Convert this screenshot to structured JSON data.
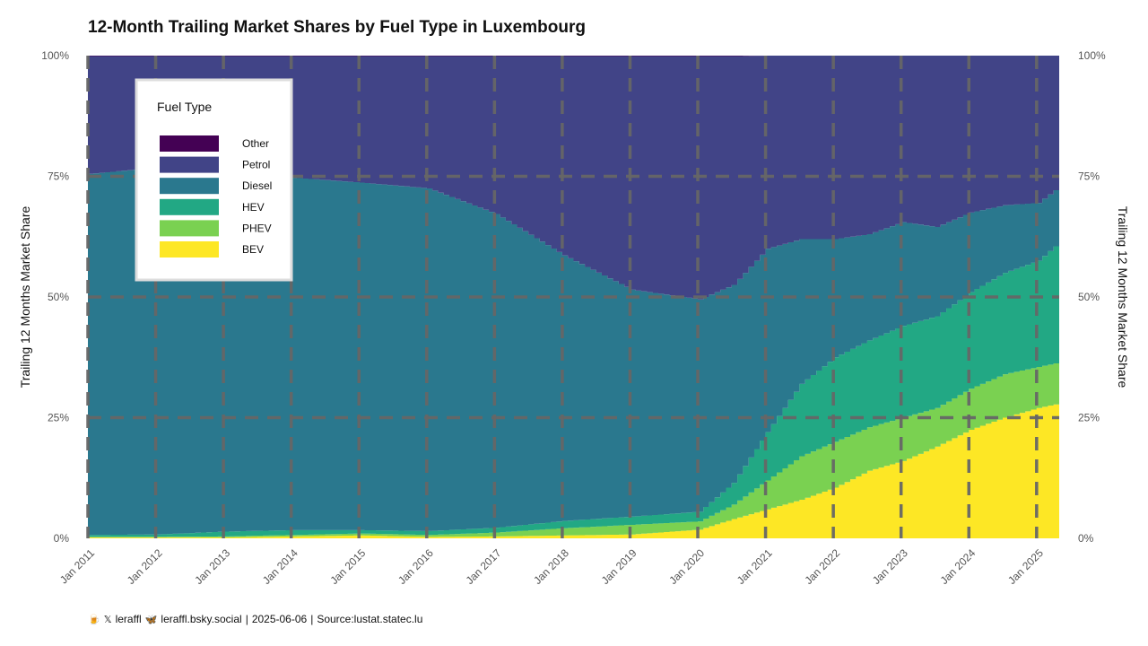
{
  "chart_data": {
    "type": "area",
    "stacked": true,
    "normalized": true,
    "title": "12-Month Trailing Market Shares by Fuel Type in Luxembourg",
    "ylabel": "Trailing 12 Months Market Share",
    "ylabel_right": "Trailing 12 Months Market Share",
    "ylim": [
      0,
      100
    ],
    "y_ticks": [
      "0%",
      "25%",
      "50%",
      "75%",
      "100%"
    ],
    "x_ticks": [
      "Jan 2011",
      "Jan 2012",
      "Jan 2013",
      "Jan 2014",
      "Jan 2015",
      "Jan 2016",
      "Jan 2017",
      "Jan 2018",
      "Jan 2019",
      "Jan 2020",
      "Jan 2021",
      "Jan 2022",
      "Jan 2023",
      "Jan 2024",
      "Jan 2025"
    ],
    "x_range": [
      "2011-01",
      "2025-05"
    ],
    "grid": true,
    "legend": {
      "title": "Fuel Type",
      "position": "top-left",
      "items": [
        "Other",
        "Petrol",
        "Diesel",
        "HEV",
        "PHEV",
        "BEV"
      ]
    },
    "stack_order": [
      "BEV",
      "PHEV",
      "HEV",
      "Diesel",
      "Petrol",
      "Other"
    ],
    "colors": {
      "Other": "#440154",
      "Petrol": "#414487",
      "Diesel": "#2a788e",
      "HEV": "#22a884",
      "PHEV": "#7ad151",
      "BEV": "#fde725"
    },
    "x": [
      "2011-01",
      "2012-01",
      "2013-01",
      "2014-01",
      "2015-01",
      "2016-01",
      "2017-01",
      "2018-01",
      "2019-01",
      "2020-01",
      "2020-07",
      "2021-01",
      "2021-07",
      "2022-01",
      "2022-07",
      "2023-01",
      "2023-07",
      "2024-01",
      "2024-07",
      "2025-01",
      "2025-05"
    ],
    "series": [
      {
        "name": "BEV",
        "values": [
          0.2,
          0.2,
          0.2,
          0.4,
          0.6,
          0.3,
          0.4,
          0.6,
          0.8,
          1.8,
          4.0,
          6.0,
          8.0,
          10.5,
          14.0,
          16.0,
          19.0,
          22.5,
          25.0,
          27.0,
          28.0
        ]
      },
      {
        "name": "PHEV",
        "values": [
          0.1,
          0.1,
          0.2,
          0.3,
          0.4,
          0.4,
          0.8,
          1.5,
          2.0,
          1.7,
          3.0,
          6.0,
          9.0,
          9.5,
          9.0,
          9.0,
          8.0,
          8.5,
          9.0,
          8.5,
          8.5
        ]
      },
      {
        "name": "HEV",
        "values": [
          0.4,
          0.5,
          1.0,
          1.0,
          0.7,
          0.8,
          1.0,
          1.5,
          1.7,
          2.0,
          4.5,
          10.0,
          15.0,
          17.5,
          18.0,
          19.0,
          19.0,
          20.0,
          21.0,
          22.0,
          25.0
        ]
      },
      {
        "name": "Diesel",
        "values": [
          74.8,
          76.0,
          74.0,
          73.0,
          72.0,
          71.0,
          65.0,
          55.0,
          47.0,
          44.0,
          41.0,
          38.0,
          30.0,
          24.5,
          22.0,
          21.5,
          18.5,
          16.5,
          14.0,
          12.0,
          11.5
        ]
      },
      {
        "name": "Petrol",
        "values": [
          24.4,
          23.1,
          24.5,
          25.2,
          26.2,
          27.4,
          32.7,
          41.3,
          48.4,
          50.4,
          47.4,
          40.0,
          38.0,
          38.0,
          37.0,
          34.5,
          35.5,
          32.5,
          31.0,
          30.5,
          27.0
        ]
      },
      {
        "name": "Other",
        "values": [
          0.1,
          0.1,
          0.1,
          0.1,
          0.1,
          0.1,
          0.1,
          0.1,
          0.1,
          0.1,
          0.1,
          0.0,
          0.0,
          0.0,
          0.0,
          0.0,
          0.0,
          0.0,
          0.0,
          0.0,
          0.0
        ]
      }
    ]
  },
  "footer": {
    "handle_x": "leraffl",
    "handle_bsky": "leraffl.bsky.social",
    "date": "2025-06-06",
    "source": "Source:lustat.statec.lu",
    "separator": "|"
  },
  "icons": [
    "beer-icon",
    "x-logo-icon",
    "butterfly-icon"
  ]
}
